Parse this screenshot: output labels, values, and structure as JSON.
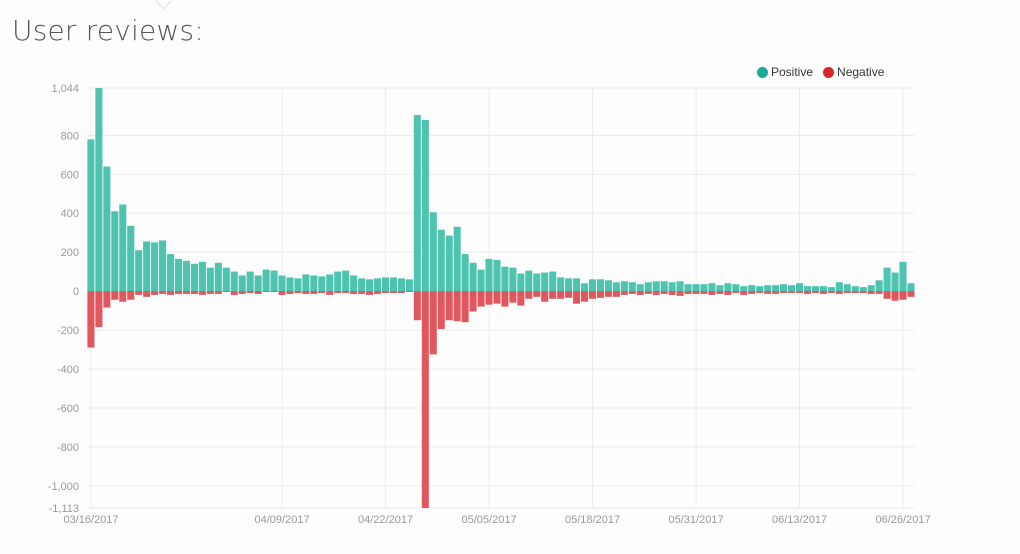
{
  "page": {
    "title": "User reviews:"
  },
  "colors": {
    "positive": "#4dc3b0",
    "negative": "#e0585e",
    "grid": "#ececec",
    "axis_text": "#999999"
  },
  "chart_data": {
    "type": "bar",
    "title": "User reviews:",
    "stacked_diverging": true,
    "xlabel": "",
    "ylabel": "",
    "ylim": [
      -1113,
      1044
    ],
    "y_ticks": [
      {
        "value": 1044,
        "label": "1,044"
      },
      {
        "value": 800,
        "label": "800"
      },
      {
        "value": 600,
        "label": "600"
      },
      {
        "value": 400,
        "label": "400"
      },
      {
        "value": 200,
        "label": "200"
      },
      {
        "value": 0,
        "label": "0"
      },
      {
        "value": -200,
        "label": "-200"
      },
      {
        "value": -400,
        "label": "-400"
      },
      {
        "value": -600,
        "label": "-600"
      },
      {
        "value": -800,
        "label": "-800"
      },
      {
        "value": -1000,
        "label": "-1,000"
      },
      {
        "value": -1113,
        "label": "-1,113"
      }
    ],
    "x_ticks": [
      {
        "index": 0,
        "label": "03/16/2017"
      },
      {
        "index": 24,
        "label": "04/09/2017"
      },
      {
        "index": 37,
        "label": "04/22/2017"
      },
      {
        "index": 50,
        "label": "05/05/2017"
      },
      {
        "index": 63,
        "label": "05/18/2017"
      },
      {
        "index": 76,
        "label": "05/31/2017"
      },
      {
        "index": 89,
        "label": "06/13/2017"
      },
      {
        "index": 102,
        "label": "06/26/2017"
      }
    ],
    "legend": {
      "position": "top-right"
    },
    "series": [
      {
        "name": "Positive",
        "values": [
          780,
          1044,
          640,
          410,
          445,
          335,
          210,
          255,
          250,
          260,
          190,
          165,
          155,
          140,
          150,
          120,
          145,
          120,
          100,
          80,
          100,
          80,
          110,
          105,
          80,
          70,
          65,
          85,
          80,
          75,
          85,
          100,
          105,
          80,
          65,
          60,
          65,
          70,
          70,
          65,
          60,
          905,
          880,
          405,
          315,
          285,
          330,
          190,
          145,
          110,
          165,
          160,
          125,
          120,
          90,
          105,
          90,
          95,
          100,
          70,
          65,
          65,
          40,
          60,
          60,
          55,
          45,
          50,
          45,
          35,
          45,
          50,
          50,
          45,
          50,
          35,
          35,
          35,
          40,
          30,
          40,
          35,
          25,
          30,
          25,
          30,
          30,
          35,
          30,
          40,
          25,
          25,
          25,
          20,
          45,
          35,
          25,
          20,
          30,
          55,
          120,
          95,
          150,
          40
        ]
      },
      {
        "name": "Negative",
        "values": [
          -290,
          -185,
          -85,
          -45,
          -55,
          -45,
          -20,
          -30,
          -20,
          -15,
          -20,
          -15,
          -15,
          -15,
          -20,
          -15,
          -15,
          -5,
          -20,
          -15,
          -10,
          -15,
          -5,
          -5,
          -20,
          -15,
          -10,
          -15,
          -15,
          -10,
          -20,
          -10,
          -10,
          -15,
          -15,
          -20,
          -15,
          -10,
          -10,
          -10,
          -5,
          -150,
          -1113,
          -325,
          -195,
          -150,
          -155,
          -160,
          -105,
          -80,
          -70,
          -65,
          -80,
          -60,
          -75,
          -40,
          -30,
          -55,
          -40,
          -40,
          -35,
          -65,
          -55,
          -40,
          -35,
          -30,
          -30,
          -20,
          -15,
          -20,
          -15,
          -20,
          -15,
          -20,
          -25,
          -15,
          -15,
          -15,
          -20,
          -15,
          -20,
          -10,
          -20,
          -15,
          -10,
          -15,
          -15,
          -10,
          -10,
          -10,
          -15,
          -10,
          -15,
          -10,
          -15,
          -10,
          -10,
          -10,
          -15,
          -15,
          -40,
          -50,
          -45,
          -30
        ]
      }
    ]
  }
}
